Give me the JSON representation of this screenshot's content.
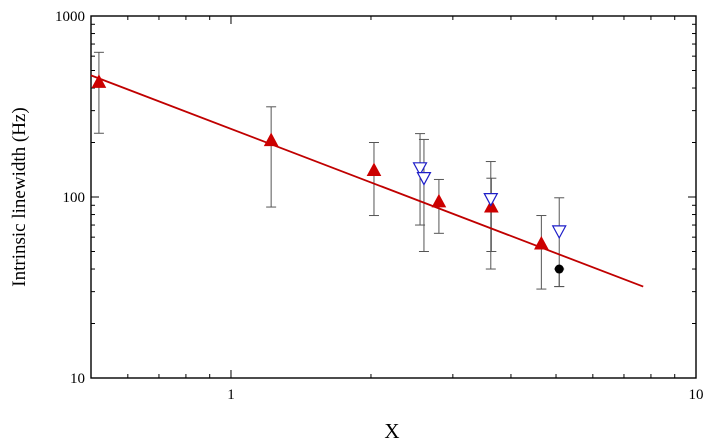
{
  "chart_data": {
    "type": "scatter",
    "title": "",
    "xlabel": "X",
    "ylabel": "Intrinsic linewidth (Hz)",
    "xscale": "log",
    "yscale": "log",
    "xlim": [
      0.5,
      10
    ],
    "ylim": [
      10,
      1000
    ],
    "x_ticks": [
      {
        "value": 1,
        "label": "1"
      },
      {
        "value": 10,
        "label": "10"
      }
    ],
    "y_ticks": [
      {
        "value": 10,
        "label": "10"
      },
      {
        "value": 100,
        "label": "100"
      },
      {
        "value": 1000,
        "label": "1000"
      }
    ],
    "grid": false,
    "legend": "none",
    "series": [
      {
        "marker": "triangle-up-filled",
        "color": "#cc0000",
        "points": [
          {
            "x": 0.52,
            "y": 430,
            "ylo": 225,
            "yhi": 630
          },
          {
            "x": 1.22,
            "y": 205,
            "ylo": 88,
            "yhi": 315
          },
          {
            "x": 2.03,
            "y": 140,
            "ylo": 79,
            "yhi": 200
          },
          {
            "x": 2.8,
            "y": 94,
            "ylo": 63,
            "yhi": 125
          },
          {
            "x": 3.63,
            "y": 88,
            "ylo": 50,
            "yhi": 127
          },
          {
            "x": 4.65,
            "y": 55,
            "ylo": 31,
            "yhi": 79
          }
        ]
      },
      {
        "marker": "triangle-down-open",
        "color": "#1e1ec8",
        "points": [
          {
            "x": 2.55,
            "y": 145,
            "ylo": 70,
            "yhi": 224
          },
          {
            "x": 2.6,
            "y": 128,
            "ylo": 50,
            "yhi": 208
          },
          {
            "x": 3.62,
            "y": 98,
            "ylo": 40,
            "yhi": 157
          },
          {
            "x": 5.08,
            "y": 65,
            "ylo": 32,
            "yhi": 99
          }
        ]
      },
      {
        "marker": "circle-filled",
        "color": "#000000",
        "points": [
          {
            "x": 5.08,
            "y": 40,
            "ylo": 32,
            "yhi": 40
          }
        ]
      }
    ],
    "fit_line": {
      "color": "#c00000",
      "x": [
        0.5,
        7.7
      ],
      "y": [
        470,
        32
      ]
    }
  }
}
